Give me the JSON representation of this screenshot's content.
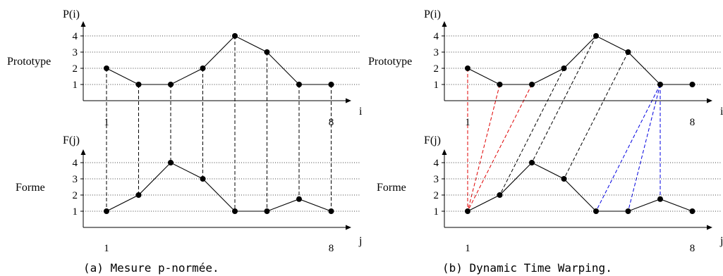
{
  "panels": [
    {
      "caption": "(a) Mesure p-normée.",
      "prototype": {
        "label": "Prototype",
        "y_axis_label": "P(i)",
        "x_axis_label": "i",
        "values": [
          2,
          1,
          1,
          2,
          4,
          3,
          1,
          1
        ],
        "x_ticks": [
          "1",
          "8"
        ]
      },
      "forme": {
        "label": "Forme",
        "y_axis_label": "F(j)",
        "x_axis_label": "j",
        "values": [
          1,
          2,
          4,
          3,
          1,
          1,
          1.75,
          1
        ],
        "x_ticks": [
          "1",
          "8"
        ]
      },
      "y_ticks": [
        "1",
        "2",
        "3",
        "4"
      ],
      "connections": [
        {
          "p": 1,
          "f": 1,
          "color": "#000000"
        },
        {
          "p": 2,
          "f": 2,
          "color": "#000000"
        },
        {
          "p": 3,
          "f": 3,
          "color": "#000000"
        },
        {
          "p": 4,
          "f": 4,
          "color": "#000000"
        },
        {
          "p": 5,
          "f": 5,
          "color": "#000000"
        },
        {
          "p": 6,
          "f": 6,
          "color": "#000000"
        },
        {
          "p": 7,
          "f": 7,
          "color": "#000000"
        },
        {
          "p": 8,
          "f": 8,
          "color": "#000000"
        }
      ]
    },
    {
      "caption": "(b) Dynamic Time Warping.",
      "prototype": {
        "label": "Prototype",
        "y_axis_label": "P(i)",
        "x_axis_label": "i",
        "values": [
          2,
          1,
          1,
          2,
          4,
          3,
          1,
          1
        ],
        "x_ticks": [
          "1",
          "8"
        ]
      },
      "forme": {
        "label": "Forme",
        "y_axis_label": "F(j)",
        "x_axis_label": "j",
        "values": [
          1,
          2,
          4,
          3,
          1,
          1,
          1.75,
          1
        ],
        "x_ticks": [
          "1",
          "8"
        ]
      },
      "y_ticks": [
        "1",
        "2",
        "3",
        "4"
      ],
      "connections": [
        {
          "p": 1,
          "f": 1,
          "color": "#e00000"
        },
        {
          "p": 2,
          "f": 1,
          "color": "#e00000"
        },
        {
          "p": 3,
          "f": 1,
          "color": "#e00000"
        },
        {
          "p": 4,
          "f": 2,
          "color": "#000000"
        },
        {
          "p": 5,
          "f": 3,
          "color": "#000000"
        },
        {
          "p": 6,
          "f": 4,
          "color": "#000000"
        },
        {
          "p": 7,
          "f": 5,
          "color": "#0000e0"
        },
        {
          "p": 7,
          "f": 6,
          "color": "#0000e0"
        },
        {
          "p": 7,
          "f": 7,
          "color": "#0000e0"
        }
      ]
    }
  ]
}
